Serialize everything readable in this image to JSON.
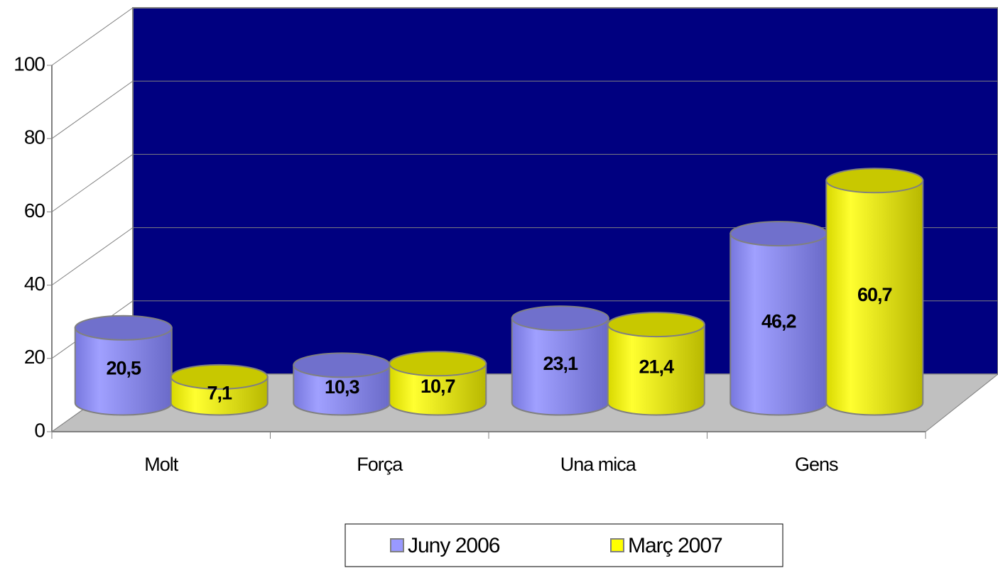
{
  "chart_data": {
    "type": "bar",
    "categories": [
      "Molt",
      "Força",
      "Una mica",
      "Gens"
    ],
    "series": [
      {
        "name": "Juny 2006",
        "color": "#9999ff",
        "values": [
          20.5,
          10.3,
          23.1,
          46.2
        ],
        "value_labels": [
          "20,5",
          "10,3",
          "23,1",
          "46,2"
        ]
      },
      {
        "name": "Març 2007",
        "color": "#ffff00",
        "values": [
          7.1,
          10.7,
          21.4,
          60.7
        ],
        "value_labels": [
          "7,1",
          "10,7",
          "21,4",
          "60,7"
        ]
      }
    ],
    "ylim": [
      0,
      100
    ],
    "yticks": [
      0,
      20,
      40,
      60,
      80,
      100
    ],
    "grid": true,
    "wall_color": "#000080",
    "floor_color": "#c0c0c0",
    "legend": "bottom"
  }
}
